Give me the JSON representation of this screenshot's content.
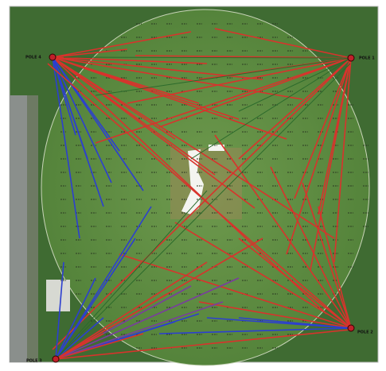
{
  "poles": [
    {
      "label": "POLE 4"
    },
    {
      "label": "POLE 1"
    },
    {
      "label": "POLE 2"
    },
    {
      "label": "POLE 3"
    }
  ]
}
